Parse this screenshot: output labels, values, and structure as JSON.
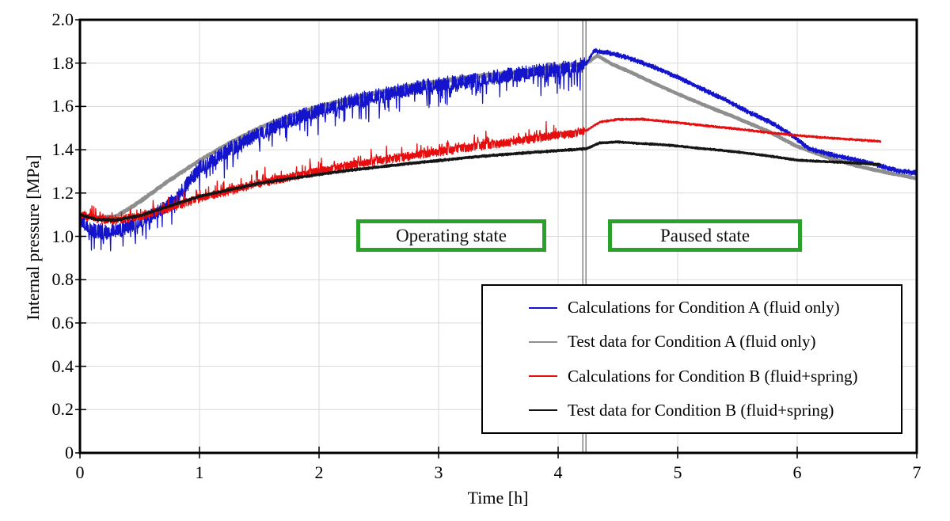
{
  "chart_data": {
    "type": "line",
    "title": "",
    "xlabel": "Time [h]",
    "ylabel": "Internal pressure [MPa]",
    "xlim": [
      0,
      7
    ],
    "ylim": [
      0,
      2.0
    ],
    "xticks": [
      0,
      1,
      2,
      3,
      4,
      5,
      6,
      7
    ],
    "yticks": [
      0,
      0.2,
      0.4,
      0.6,
      0.8,
      1.0,
      1.2,
      1.4,
      1.6,
      1.8,
      2.0
    ],
    "ytick_labels": [
      "0",
      "0.2",
      "0.4",
      "0.6",
      "0.8",
      "1.0",
      "1.2",
      "1.4",
      "1.6",
      "1.8",
      "2.0"
    ],
    "grid": true,
    "legend_position": "bottom-right",
    "event_line_time_h": 4.22,
    "annotations": [
      {
        "label": "Operating state",
        "t_center": 3.1
      },
      {
        "label": "Paused state",
        "t_center": 5.2
      }
    ],
    "series": [
      {
        "name": "Calculations for Condition A (fluid only)",
        "color": "#1414cc",
        "width": 1.3,
        "seed": 7,
        "step": 0.004,
        "noise": {
          "operating": 0.035,
          "paused": 0.012,
          "spike_p": 0.17,
          "spike_dir": -1,
          "spike_max": 0.075
        },
        "anchors": [
          [
            0,
            1.08
          ],
          [
            0.1,
            1.03
          ],
          [
            0.22,
            1.02
          ],
          [
            0.35,
            1.035
          ],
          [
            0.5,
            1.07
          ],
          [
            0.65,
            1.11
          ],
          [
            0.8,
            1.17
          ],
          [
            1.0,
            1.315
          ],
          [
            1.25,
            1.4
          ],
          [
            1.5,
            1.48
          ],
          [
            1.75,
            1.535
          ],
          [
            2.0,
            1.58
          ],
          [
            2.25,
            1.62
          ],
          [
            2.5,
            1.65
          ],
          [
            2.75,
            1.68
          ],
          [
            3.0,
            1.7
          ],
          [
            3.25,
            1.72
          ],
          [
            3.5,
            1.737
          ],
          [
            3.75,
            1.755
          ],
          [
            4.0,
            1.772
          ],
          [
            4.15,
            1.782
          ],
          [
            4.24,
            1.8
          ],
          [
            4.3,
            1.857
          ],
          [
            4.45,
            1.845
          ],
          [
            4.6,
            1.822
          ],
          [
            4.8,
            1.782
          ],
          [
            5.0,
            1.735
          ],
          [
            5.2,
            1.682
          ],
          [
            5.4,
            1.63
          ],
          [
            5.6,
            1.572
          ],
          [
            5.8,
            1.52
          ],
          [
            5.95,
            1.468
          ],
          [
            6.1,
            1.405
          ],
          [
            6.3,
            1.375
          ],
          [
            6.5,
            1.352
          ],
          [
            6.7,
            1.325
          ],
          [
            6.85,
            1.302
          ],
          [
            7.0,
            1.293
          ]
        ]
      },
      {
        "name": "Test data for Condition A (fluid only)",
        "color": "#8e8e8e",
        "width": 3.5,
        "seed": 3,
        "step": 0.006,
        "noise": {
          "operating": 0.006,
          "paused": 0.004,
          "spike_p": 0,
          "spike_dir": 1,
          "spike_max": 0
        },
        "anchors": [
          [
            0,
            1.1
          ],
          [
            0.12,
            1.085
          ],
          [
            0.3,
            1.09
          ],
          [
            0.5,
            1.16
          ],
          [
            0.75,
            1.26
          ],
          [
            1.0,
            1.35
          ],
          [
            1.25,
            1.43
          ],
          [
            1.5,
            1.5
          ],
          [
            1.75,
            1.555
          ],
          [
            2.0,
            1.6
          ],
          [
            2.25,
            1.635
          ],
          [
            2.5,
            1.665
          ],
          [
            2.75,
            1.695
          ],
          [
            3.0,
            1.715
          ],
          [
            3.25,
            1.735
          ],
          [
            3.5,
            1.75
          ],
          [
            3.75,
            1.765
          ],
          [
            4.0,
            1.785
          ],
          [
            4.15,
            1.793
          ],
          [
            4.24,
            1.8
          ],
          [
            4.33,
            1.835
          ],
          [
            4.45,
            1.795
          ],
          [
            4.6,
            1.76
          ],
          [
            4.75,
            1.72
          ],
          [
            5.0,
            1.658
          ],
          [
            5.25,
            1.6
          ],
          [
            5.5,
            1.545
          ],
          [
            5.75,
            1.487
          ],
          [
            6.0,
            1.415
          ],
          [
            6.25,
            1.365
          ],
          [
            6.5,
            1.325
          ],
          [
            6.75,
            1.295
          ],
          [
            7.0,
            1.268
          ]
        ]
      },
      {
        "name": "Calculations for Condition B (fluid+spring)",
        "color": "#e60e0e",
        "width": 1.3,
        "seed": 11,
        "step": 0.004,
        "noise": {
          "operating": 0.02,
          "paused": 0.006,
          "spike_p": 0.13,
          "spike_dir": 1,
          "spike_max": 0.04
        },
        "anchors": [
          [
            0,
            1.1
          ],
          [
            0.15,
            1.08
          ],
          [
            0.3,
            1.075
          ],
          [
            0.5,
            1.09
          ],
          [
            0.75,
            1.13
          ],
          [
            1.0,
            1.175
          ],
          [
            1.25,
            1.21
          ],
          [
            1.5,
            1.245
          ],
          [
            1.75,
            1.272
          ],
          [
            2.0,
            1.3
          ],
          [
            2.25,
            1.326
          ],
          [
            2.5,
            1.35
          ],
          [
            2.75,
            1.37
          ],
          [
            3.0,
            1.39
          ],
          [
            3.25,
            1.41
          ],
          [
            3.5,
            1.427
          ],
          [
            3.75,
            1.447
          ],
          [
            4.0,
            1.467
          ],
          [
            4.15,
            1.478
          ],
          [
            4.24,
            1.49
          ],
          [
            4.35,
            1.528
          ],
          [
            4.5,
            1.54
          ],
          [
            4.7,
            1.541
          ],
          [
            5.0,
            1.525
          ],
          [
            5.25,
            1.51
          ],
          [
            5.5,
            1.496
          ],
          [
            5.75,
            1.48
          ],
          [
            6.0,
            1.466
          ],
          [
            6.25,
            1.455
          ],
          [
            6.5,
            1.446
          ],
          [
            6.7,
            1.438
          ]
        ]
      },
      {
        "name": "Test data for Condition B (fluid+spring)",
        "color": "#151515",
        "width": 2.3,
        "seed": 5,
        "step": 0.006,
        "noise": {
          "operating": 0.005,
          "paused": 0.004,
          "spike_p": 0,
          "spike_dir": 1,
          "spike_max": 0
        },
        "anchors": [
          [
            0,
            1.1
          ],
          [
            0.15,
            1.077
          ],
          [
            0.3,
            1.075
          ],
          [
            0.5,
            1.095
          ],
          [
            0.75,
            1.14
          ],
          [
            1.0,
            1.185
          ],
          [
            1.25,
            1.215
          ],
          [
            1.5,
            1.245
          ],
          [
            1.75,
            1.266
          ],
          [
            2.0,
            1.286
          ],
          [
            2.25,
            1.305
          ],
          [
            2.5,
            1.32
          ],
          [
            2.75,
            1.336
          ],
          [
            3.0,
            1.35
          ],
          [
            3.25,
            1.364
          ],
          [
            3.5,
            1.376
          ],
          [
            3.75,
            1.386
          ],
          [
            4.0,
            1.396
          ],
          [
            4.12,
            1.4
          ],
          [
            4.24,
            1.405
          ],
          [
            4.35,
            1.432
          ],
          [
            4.5,
            1.436
          ],
          [
            4.65,
            1.43
          ],
          [
            4.85,
            1.424
          ],
          [
            5.0,
            1.417
          ],
          [
            5.25,
            1.403
          ],
          [
            5.5,
            1.39
          ],
          [
            5.75,
            1.372
          ],
          [
            6.0,
            1.352
          ],
          [
            6.2,
            1.346
          ],
          [
            6.45,
            1.34
          ],
          [
            6.7,
            1.331
          ]
        ]
      }
    ],
    "colors": {
      "grid": "#d9d9d9",
      "frame": "#000000",
      "event_line": "#8c8c8c",
      "annotation_border": "#28a228",
      "background": "#ffffff"
    }
  }
}
